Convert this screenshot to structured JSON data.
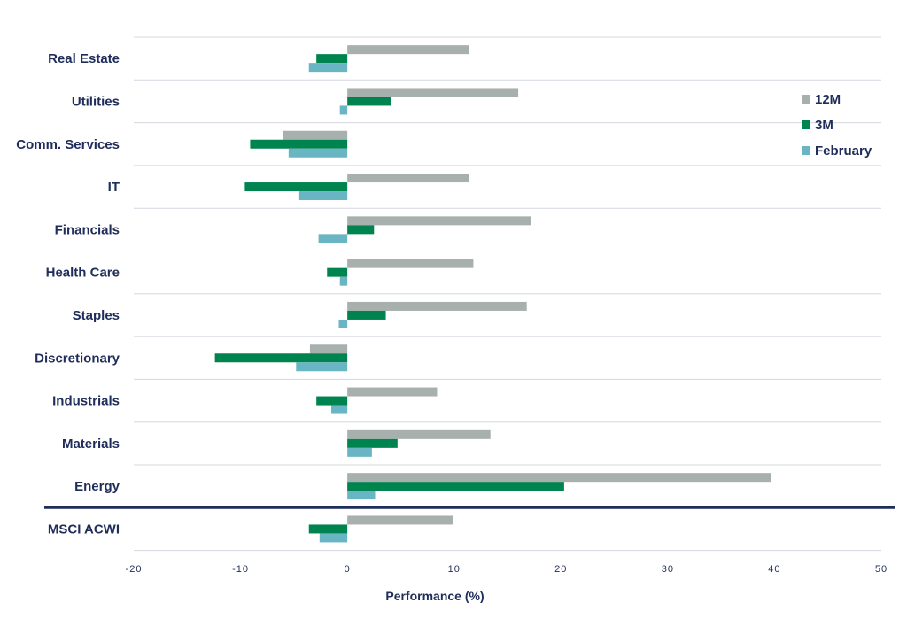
{
  "chart_data": {
    "type": "bar",
    "orientation": "horizontal",
    "categories": [
      "Real Estate",
      "Utilities",
      "Comm. Services",
      "IT",
      "Financials",
      "Health Care",
      "Staples",
      "Discretionary",
      "Industrials",
      "Materials",
      "Energy",
      "MSCI ACWI"
    ],
    "series": [
      {
        "name": "12M",
        "color": "#a8b0ad",
        "values": [
          11.4,
          16.0,
          -6.0,
          11.4,
          17.2,
          11.8,
          16.8,
          -3.5,
          8.4,
          13.4,
          39.7,
          9.9
        ]
      },
      {
        "name": "3M",
        "color": "#00844f",
        "values": [
          -2.9,
          4.1,
          -9.1,
          -9.6,
          2.5,
          -1.9,
          3.6,
          -12.4,
          -2.9,
          4.7,
          20.3,
          -3.6
        ]
      },
      {
        "name": "February",
        "color": "#6ab5c4",
        "values": [
          -3.6,
          -0.7,
          -5.5,
          -4.5,
          -2.7,
          -0.7,
          -0.8,
          -4.8,
          -1.5,
          2.3,
          2.6,
          -2.6
        ]
      }
    ],
    "xlabel": "Performance (%)",
    "xlim": [
      -20,
      50
    ],
    "xticks": [
      -20,
      -10,
      0,
      10,
      20,
      30,
      40,
      50
    ],
    "grid": true,
    "legend_position": "top-right"
  }
}
